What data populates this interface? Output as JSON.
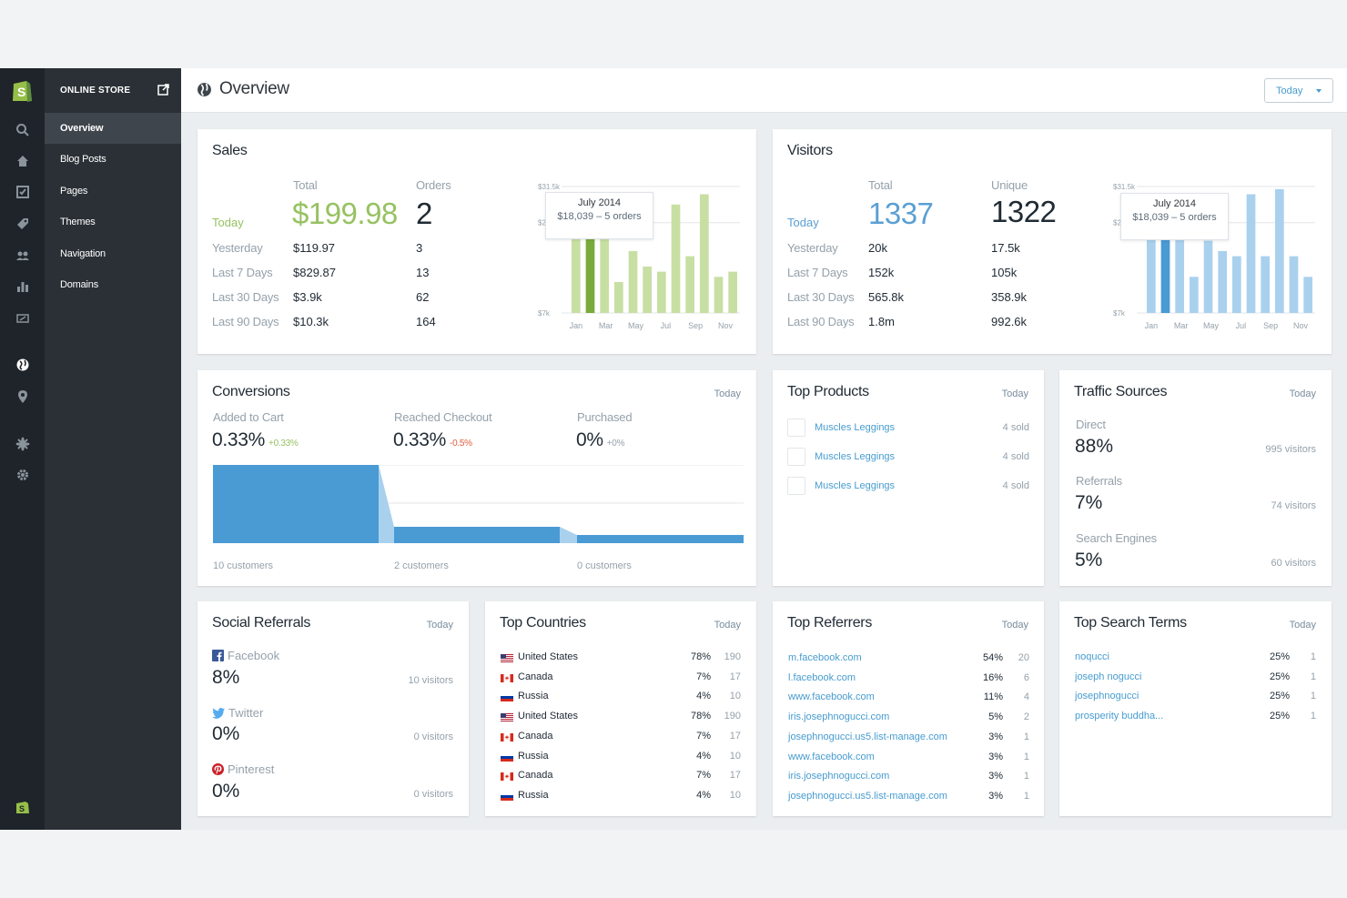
{
  "colors": {
    "sales_bar": "#c8dfa3",
    "sales_bar_active": "#7aab3a",
    "visitor_bar": "#a9d1ee",
    "visitor_bar_active": "#4a9ad4",
    "funnel": "#4a9ad4",
    "funnel_light": "#a9d1ee",
    "link": "#479ccf"
  },
  "sidebar": {
    "section_title": "ONLINE STORE",
    "items": [
      {
        "label": "Overview"
      },
      {
        "label": "Blog Posts"
      },
      {
        "label": "Pages"
      },
      {
        "label": "Themes"
      },
      {
        "label": "Navigation"
      },
      {
        "label": "Domains"
      }
    ]
  },
  "header": {
    "title": "Overview",
    "date_select": "Today"
  },
  "sales": {
    "title": "Sales",
    "col_total": "Total",
    "col_orders": "Orders",
    "today_label": "Today",
    "today_total": "$199.98",
    "today_orders": "2",
    "rows": [
      {
        "label": "Yesterday",
        "total": "$119.97",
        "orders": "3"
      },
      {
        "label": "Last 7 Days",
        "total": "$829.87",
        "orders": "13"
      },
      {
        "label": "Last 30 Days",
        "total": "$3.9k",
        "orders": "62"
      },
      {
        "label": "Last 90 Days",
        "total": "$10.3k",
        "orders": "164"
      }
    ],
    "tooltip": {
      "title": "July 2014",
      "detail": "$18,039 – 5 orders"
    }
  },
  "visitors": {
    "title": "Visitors",
    "col_total": "Total",
    "col_unique": "Unique",
    "today_label": "Today",
    "today_total": "1337",
    "today_unique": "1322",
    "rows": [
      {
        "label": "Yesterday",
        "total": "20k",
        "unique": "17.5k"
      },
      {
        "label": "Last 7 Days",
        "total": "152k",
        "unique": "105k"
      },
      {
        "label": "Last 30 Days",
        "total": "565.8k",
        "unique": "358.9k"
      },
      {
        "label": "Last 90 Days",
        "total": "1.8m",
        "unique": "992.6k"
      }
    ],
    "tooltip": {
      "title": "July 2014",
      "detail": "$18,039 – 5 orders"
    }
  },
  "chart_data": [
    {
      "type": "bar",
      "title": "",
      "y_ticks": [
        "$31.5k",
        "$24.5k",
        "$7k"
      ],
      "ylim": [
        7,
        31.5
      ],
      "x_tick_labels": [
        "Jan",
        "Mar",
        "May",
        "Jul",
        "Sep",
        "Nov"
      ],
      "active_index": 1,
      "series": [
        {
          "values": [
            24,
            24.5,
            28,
            13,
            19,
            16,
            15,
            28,
            18,
            30,
            14,
            15
          ]
        }
      ]
    },
    {
      "type": "bar",
      "title": "",
      "y_ticks": [
        "$31.5k",
        "$24.5k",
        "$7k"
      ],
      "ylim": [
        7,
        31.5
      ],
      "x_tick_labels": [
        "Jan",
        "Mar",
        "May",
        "Jul",
        "Sep",
        "Nov"
      ],
      "active_index": 1,
      "series": [
        {
          "values": [
            24,
            24.5,
            28,
            14,
            21,
            19,
            18,
            30,
            18,
            31,
            18,
            14
          ]
        }
      ]
    }
  ],
  "conversions": {
    "title": "Conversions",
    "period": "Today",
    "stages": [
      {
        "label": "Added to Cart",
        "value": "0.33%",
        "delta": "+0.33%",
        "delta_color": "#96c262",
        "customers": "10 customers",
        "fill": 1.0
      },
      {
        "label": "Reached Checkout",
        "value": "0.33%",
        "delta": "-0.5%",
        "delta_color": "#e35b3f",
        "customers": "2 customers",
        "fill": 0.2
      },
      {
        "label": "Purchased",
        "value": "0%",
        "delta": "+0%",
        "delta_color": "#95a1ab",
        "customers": "0 customers",
        "fill": 0.1
      }
    ]
  },
  "top_products": {
    "title": "Top Products",
    "period": "Today",
    "items": [
      {
        "name": "Muscles Leggings",
        "sold": "4 sold"
      },
      {
        "name": "Muscles Leggings",
        "sold": "4 sold"
      },
      {
        "name": "Muscles Leggings",
        "sold": "4 sold"
      }
    ]
  },
  "traffic_sources": {
    "title": "Traffic Sources",
    "period": "Today",
    "items": [
      {
        "label": "Direct",
        "value": "88%",
        "visitors": "995 visitors"
      },
      {
        "label": "Referrals",
        "value": "7%",
        "visitors": "74 visitors"
      },
      {
        "label": "Search Engines",
        "value": "5%",
        "visitors": "60 visitors"
      }
    ]
  },
  "social": {
    "title": "Social Referrals",
    "period": "Today",
    "items": [
      {
        "name": "Facebook",
        "icon": "facebook-icon",
        "value": "8%",
        "visitors": "10 visitors"
      },
      {
        "name": "Twitter",
        "icon": "twitter-icon",
        "value": "0%",
        "visitors": "0 visitors"
      },
      {
        "name": "Pinterest",
        "icon": "pinterest-icon",
        "value": "0%",
        "visitors": "0 visitors"
      }
    ]
  },
  "countries": {
    "title": "Top Countries",
    "period": "Today",
    "rows": [
      {
        "name": "United States",
        "flag": "us",
        "pct": "78%",
        "count": "190"
      },
      {
        "name": "Canada",
        "flag": "ca",
        "pct": "7%",
        "count": "17"
      },
      {
        "name": "Russia",
        "flag": "ru",
        "pct": "4%",
        "count": "10"
      },
      {
        "name": "United States",
        "flag": "us",
        "pct": "78%",
        "count": "190"
      },
      {
        "name": "Canada",
        "flag": "ca",
        "pct": "7%",
        "count": "17"
      },
      {
        "name": "Russia",
        "flag": "ru",
        "pct": "4%",
        "count": "10"
      },
      {
        "name": "Canada",
        "flag": "ca",
        "pct": "7%",
        "count": "17"
      },
      {
        "name": "Russia",
        "flag": "ru",
        "pct": "4%",
        "count": "10"
      }
    ]
  },
  "referrers": {
    "title": "Top Referrers",
    "period": "Today",
    "rows": [
      {
        "name": "m.facebook.com",
        "pct": "54%",
        "count": "20"
      },
      {
        "name": "l.facebook.com",
        "pct": "16%",
        "count": "6"
      },
      {
        "name": "www.facebook.com",
        "pct": "11%",
        "count": "4"
      },
      {
        "name": "iris.josephnogucci.com",
        "pct": "5%",
        "count": "2"
      },
      {
        "name": "josephnogucci.us5.list-manage.com",
        "pct": "3%",
        "count": "1"
      },
      {
        "name": "www.facebook.com",
        "pct": "3%",
        "count": "1"
      },
      {
        "name": "iris.josephnogucci.com",
        "pct": "3%",
        "count": "1"
      },
      {
        "name": "josephnogucci.us5.list-manage.com",
        "pct": "3%",
        "count": "1"
      }
    ]
  },
  "search_terms": {
    "title": "Top Search Terms",
    "period": "Today",
    "rows": [
      {
        "name": "noqucci",
        "pct": "25%",
        "count": "1"
      },
      {
        "name": "joseph nogucci",
        "pct": "25%",
        "count": "1"
      },
      {
        "name": "josephnogucci",
        "pct": "25%",
        "count": "1"
      },
      {
        "name": "prosperity buddha...",
        "pct": "25%",
        "count": "1"
      }
    ]
  }
}
